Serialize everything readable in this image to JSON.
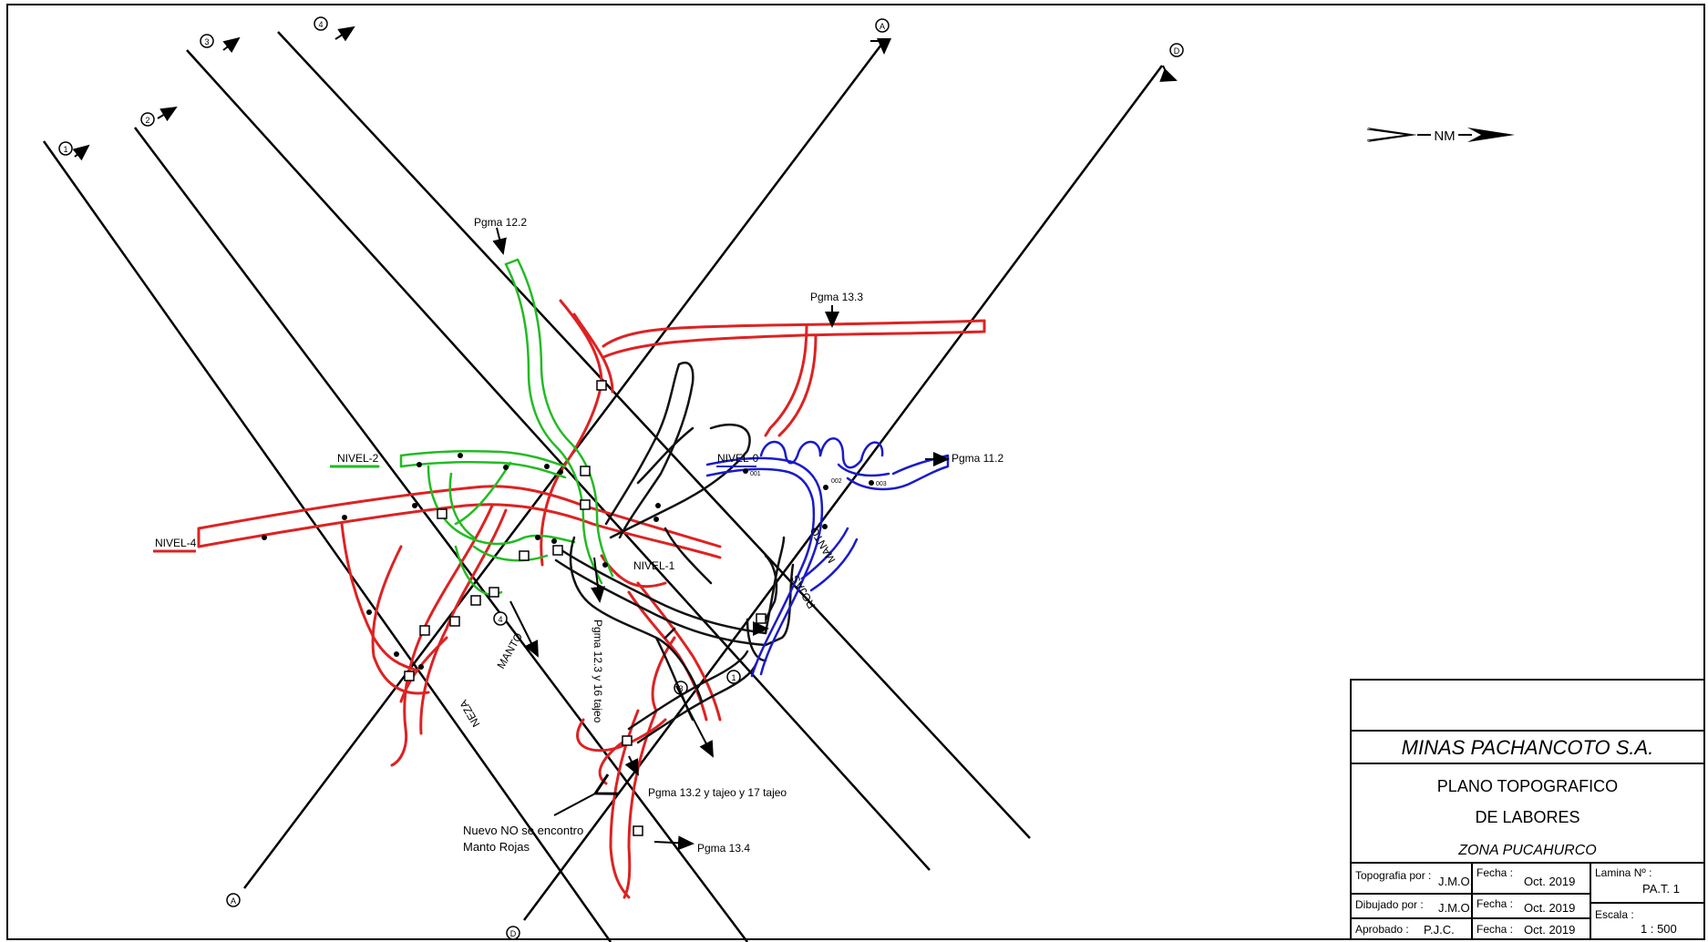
{
  "north_arrow": {
    "label": "NM"
  },
  "section_lines": {
    "numbered": [
      "1",
      "2",
      "3",
      "4"
    ],
    "lettered": [
      "A",
      "D"
    ]
  },
  "map_labels": {
    "pgma_12_2": "Pgma 12.2",
    "pgma_13_3": "Pgma 13.3",
    "pgma_11_2": "Pgma 11.2",
    "pgma_12_3": "Pgma 12.3 y 16 tajeo",
    "pgma_13_2": "Pgma 13.2 y tajeo y 17 tajeo",
    "pgma_13_4": "Pgma 13.4",
    "nivel_0": "NIVEL-0",
    "nivel_1": "NIVEL-1",
    "nivel_2": "NIVEL-2",
    "nivel_4": "NIVEL-4",
    "manto_rojas_word1": "MANTO",
    "manto_rojas_word2": "ROJAS",
    "manto_neza_word1": "MANTO",
    "manto_neza_word2": "NEZA",
    "note_line1": "Nuevo NO se encontro",
    "note_line2": "Manto Rojas",
    "point_001": "001",
    "point_002": "002",
    "point_003": "003"
  },
  "level_colors": {
    "nivel_0": "#1a1acc",
    "nivel_1": "#111111",
    "nivel_2": "#22bb22",
    "nivel_4": "#dd2222"
  },
  "title_block": {
    "company": "MINAS PACHANCOTO S.A.",
    "plan_line1": "PLANO TOPOGRAFICO",
    "plan_line2": "DE LABORES",
    "zone": "ZONA PUCAHURCO",
    "rows": [
      {
        "label": "Topografia por :",
        "who": "J.M.O.",
        "date_label": "Fecha :",
        "date": "Oct. 2019"
      },
      {
        "label": "Dibujado por :",
        "who": "J.M.O.",
        "date_label": "Fecha :",
        "date": "Oct. 2019"
      },
      {
        "label": "Aprobado :",
        "who": "P.J.C.",
        "date_label": "Fecha :",
        "date": "Oct. 2019"
      }
    ],
    "lamina_label": "Lamina Nº :",
    "lamina_value": "PA.T. 1",
    "escala_label": "Escala :",
    "escala_value": "1 : 500"
  }
}
